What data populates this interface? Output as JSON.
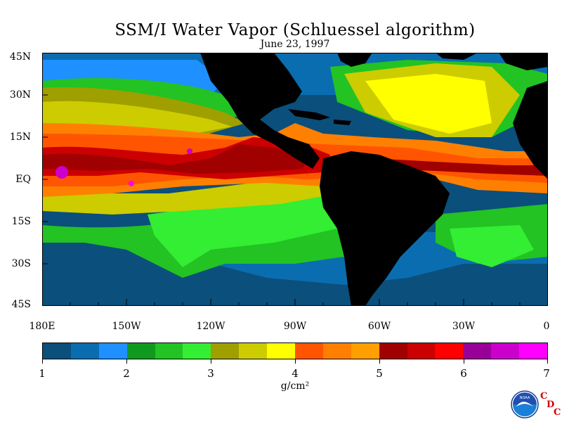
{
  "title": "SSM/I Water Vapor (Schluessel algorithm)",
  "date": "June 23, 1997",
  "lat_labels": [
    "45N",
    "30N",
    "15N",
    "EQ",
    "15S",
    "30S",
    "45S"
  ],
  "lon_labels": [
    "180E",
    "150W",
    "120W",
    "90W",
    "60W",
    "30W",
    "0"
  ],
  "colorbar": {
    "colors": [
      "#0b4f7c",
      "#0a6db0",
      "#1e90ff",
      "#0f9a1f",
      "#22c322",
      "#33ee33",
      "#9f9f00",
      "#cccc00",
      "#ffff00",
      "#ff5500",
      "#ff8000",
      "#ff9f00",
      "#a00000",
      "#cc0000",
      "#ff0000",
      "#990099",
      "#cc00cc",
      "#ff00ff"
    ],
    "tick_labels": [
      "1",
      "2",
      "3",
      "4",
      "5",
      "6",
      "7"
    ],
    "unit": "g/cm²"
  },
  "logo": {
    "name": "NOAA",
    "letters": [
      "C",
      "D",
      "C"
    ]
  },
  "colors": {
    "land": "#000000",
    "ocean_low": "#0b4f7c",
    "ocean_high": "#a00000"
  }
}
